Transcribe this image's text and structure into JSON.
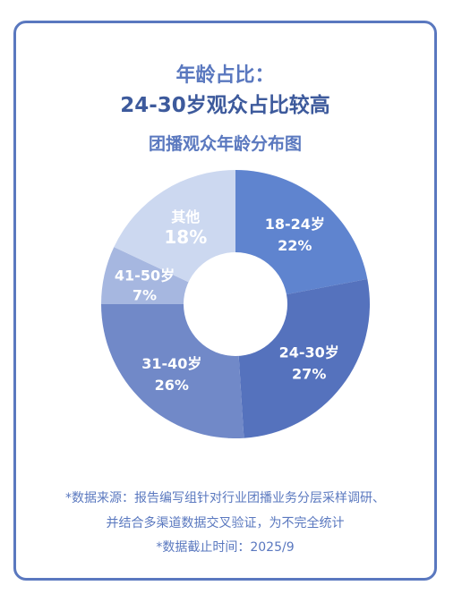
{
  "title_line1": "年龄占比：",
  "title_line2": "24-30岁观众占比较高",
  "chart_data": {
    "type": "pie",
    "title": "团播观众年龄分布图",
    "donut": true,
    "slices": [
      {
        "label": "18-24岁",
        "value": 22,
        "value_label": "22%",
        "color": "#5f84cf"
      },
      {
        "label": "24-30岁",
        "value": 27,
        "value_label": "27%",
        "color": "#5572bd"
      },
      {
        "label": "31-40岁",
        "value": 26,
        "value_label": "26%",
        "color": "#7189c8"
      },
      {
        "label": "41-50岁",
        "value": 7,
        "value_label": "7%",
        "color": "#a6b7e0"
      },
      {
        "label": "其他",
        "value": 18,
        "value_label": "18%",
        "color": "#ccd8f0"
      }
    ]
  },
  "notes": {
    "line1": "*数据来源：报告编写组针对行业团播业务分层采样调研、",
    "line2": "并结合多渠道数据交叉验证，为不完全统计",
    "line3": "*数据截止时间：2025/9"
  }
}
